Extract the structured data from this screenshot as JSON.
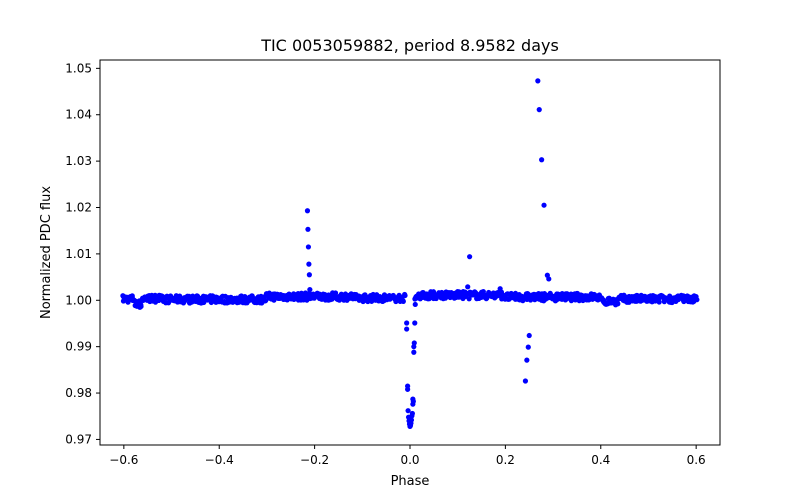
{
  "chart_data": {
    "type": "scatter",
    "title": "TIC 0053059882, period 8.9582 days",
    "xlabel": "Phase",
    "ylabel": "Normalized PDC flux",
    "xlim": [
      -0.65,
      0.65
    ],
    "ylim": [
      0.9688,
      1.0518
    ],
    "x_ticks": [
      -0.6,
      -0.4,
      -0.2,
      0.0,
      0.2,
      0.4,
      0.6
    ],
    "x_tick_labels": [
      "−0.6",
      "−0.4",
      "−0.2",
      "0.0",
      "0.2",
      "0.4",
      "0.6"
    ],
    "y_ticks": [
      0.97,
      0.98,
      0.99,
      1.0,
      1.01,
      1.02,
      1.03,
      1.04,
      1.05
    ],
    "y_tick_labels": [
      "0.97",
      "0.98",
      "0.99",
      "1.00",
      "1.01",
      "1.02",
      "1.03",
      "1.04",
      "1.05"
    ],
    "grid": false,
    "marker_color": "#0000ff",
    "series": [
      {
        "name": "flux",
        "baseline": {
          "x_range": [
            -0.6,
            0.6
          ],
          "step": 0.004,
          "level": 1.0003,
          "segments": [
            {
              "from": -0.6,
              "to": -0.58,
              "level": 1.0003
            },
            {
              "from": -0.58,
              "to": -0.56,
              "level": 0.9992
            },
            {
              "from": -0.56,
              "to": -0.52,
              "level": 1.0004
            },
            {
              "from": -0.52,
              "to": -0.3,
              "level": 1.0002
            },
            {
              "from": -0.3,
              "to": -0.12,
              "level": 1.0008
            },
            {
              "from": -0.12,
              "to": 0.02,
              "level": 1.0005
            },
            {
              "from": 0.02,
              "to": 0.2,
              "level": 1.0011
            },
            {
              "from": 0.2,
              "to": 0.4,
              "level": 1.0007
            },
            {
              "from": 0.4,
              "to": 0.44,
              "level": 0.9998
            },
            {
              "from": 0.44,
              "to": 0.6,
              "level": 1.0003
            }
          ]
        },
        "points": [
          {
            "x": -0.215,
            "y": 1.0193
          },
          {
            "x": -0.214,
            "y": 1.0153
          },
          {
            "x": -0.213,
            "y": 1.0115
          },
          {
            "x": -0.212,
            "y": 1.0078
          },
          {
            "x": -0.211,
            "y": 1.0055
          },
          {
            "x": -0.21,
            "y": 1.0023
          },
          {
            "x": -0.007,
            "y": 0.9951
          },
          {
            "x": -0.007,
            "y": 0.9938
          },
          {
            "x": -0.005,
            "y": 0.9815
          },
          {
            "x": -0.005,
            "y": 0.9808
          },
          {
            "x": -0.004,
            "y": 0.9762
          },
          {
            "x": -0.003,
            "y": 0.9748
          },
          {
            "x": -0.002,
            "y": 0.974
          },
          {
            "x": -0.001,
            "y": 0.9733
          },
          {
            "x": 0.0,
            "y": 0.9728
          },
          {
            "x": 0.001,
            "y": 0.973
          },
          {
            "x": 0.002,
            "y": 0.9735
          },
          {
            "x": 0.003,
            "y": 0.9742
          },
          {
            "x": 0.004,
            "y": 0.9751
          },
          {
            "x": 0.005,
            "y": 0.9756
          },
          {
            "x": 0.006,
            "y": 0.9776
          },
          {
            "x": 0.006,
            "y": 0.9787
          },
          {
            "x": 0.007,
            "y": 0.9782
          },
          {
            "x": 0.008,
            "y": 0.9888
          },
          {
            "x": 0.008,
            "y": 0.99
          },
          {
            "x": 0.009,
            "y": 0.9908
          },
          {
            "x": 0.01,
            "y": 0.9951
          },
          {
            "x": 0.011,
            "y": 0.9991
          },
          {
            "x": 0.125,
            "y": 1.0094
          },
          {
            "x": 0.121,
            "y": 1.0029
          },
          {
            "x": 0.189,
            "y": 1.0025
          },
          {
            "x": 0.242,
            "y": 0.9826
          },
          {
            "x": 0.245,
            "y": 0.9871
          },
          {
            "x": 0.248,
            "y": 0.9899
          },
          {
            "x": 0.25,
            "y": 0.9924
          },
          {
            "x": 0.268,
            "y": 1.0473
          },
          {
            "x": 0.271,
            "y": 1.0411
          },
          {
            "x": 0.276,
            "y": 1.0303
          },
          {
            "x": 0.281,
            "y": 1.0205
          },
          {
            "x": 0.288,
            "y": 1.0054
          },
          {
            "x": 0.291,
            "y": 1.0046
          }
        ]
      }
    ]
  }
}
